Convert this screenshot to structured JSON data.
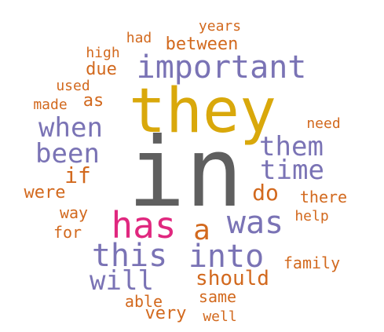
{
  "palette": {
    "gray": "#5f5f5f",
    "gold": "#d9a80b",
    "purple": "#7a73b5",
    "orange": "#d2691e",
    "pink": "#e0287f"
  },
  "words": [
    {
      "text": "in",
      "color": "gray"
    },
    {
      "text": "they",
      "color": "gold"
    },
    {
      "text": "has",
      "color": "pink"
    },
    {
      "text": "important",
      "color": "purple"
    },
    {
      "text": "was",
      "color": "purple"
    },
    {
      "text": "into",
      "color": "purple"
    },
    {
      "text": "this",
      "color": "purple"
    },
    {
      "text": "when",
      "color": "purple"
    },
    {
      "text": "been",
      "color": "purple"
    },
    {
      "text": "them",
      "color": "purple"
    },
    {
      "text": "time",
      "color": "purple"
    },
    {
      "text": "will",
      "color": "purple"
    },
    {
      "text": "a",
      "color": "orange"
    },
    {
      "text": "should",
      "color": "orange"
    },
    {
      "text": "if",
      "color": "orange"
    },
    {
      "text": "do",
      "color": "orange"
    },
    {
      "text": "between",
      "color": "orange"
    },
    {
      "text": "were",
      "color": "orange"
    },
    {
      "text": "due",
      "color": "orange"
    },
    {
      "text": "as",
      "color": "orange"
    },
    {
      "text": "there",
      "color": "orange"
    },
    {
      "text": "family",
      "color": "orange"
    },
    {
      "text": "very",
      "color": "orange"
    },
    {
      "text": "able",
      "color": "orange"
    },
    {
      "text": "same",
      "color": "orange"
    },
    {
      "text": "years",
      "color": "orange"
    },
    {
      "text": "had",
      "color": "orange"
    },
    {
      "text": "high",
      "color": "orange"
    },
    {
      "text": "used",
      "color": "orange"
    },
    {
      "text": "made",
      "color": "orange"
    },
    {
      "text": "need",
      "color": "orange"
    },
    {
      "text": "way",
      "color": "orange"
    },
    {
      "text": "for",
      "color": "orange"
    },
    {
      "text": "help",
      "color": "orange"
    },
    {
      "text": "well",
      "color": "orange"
    }
  ]
}
